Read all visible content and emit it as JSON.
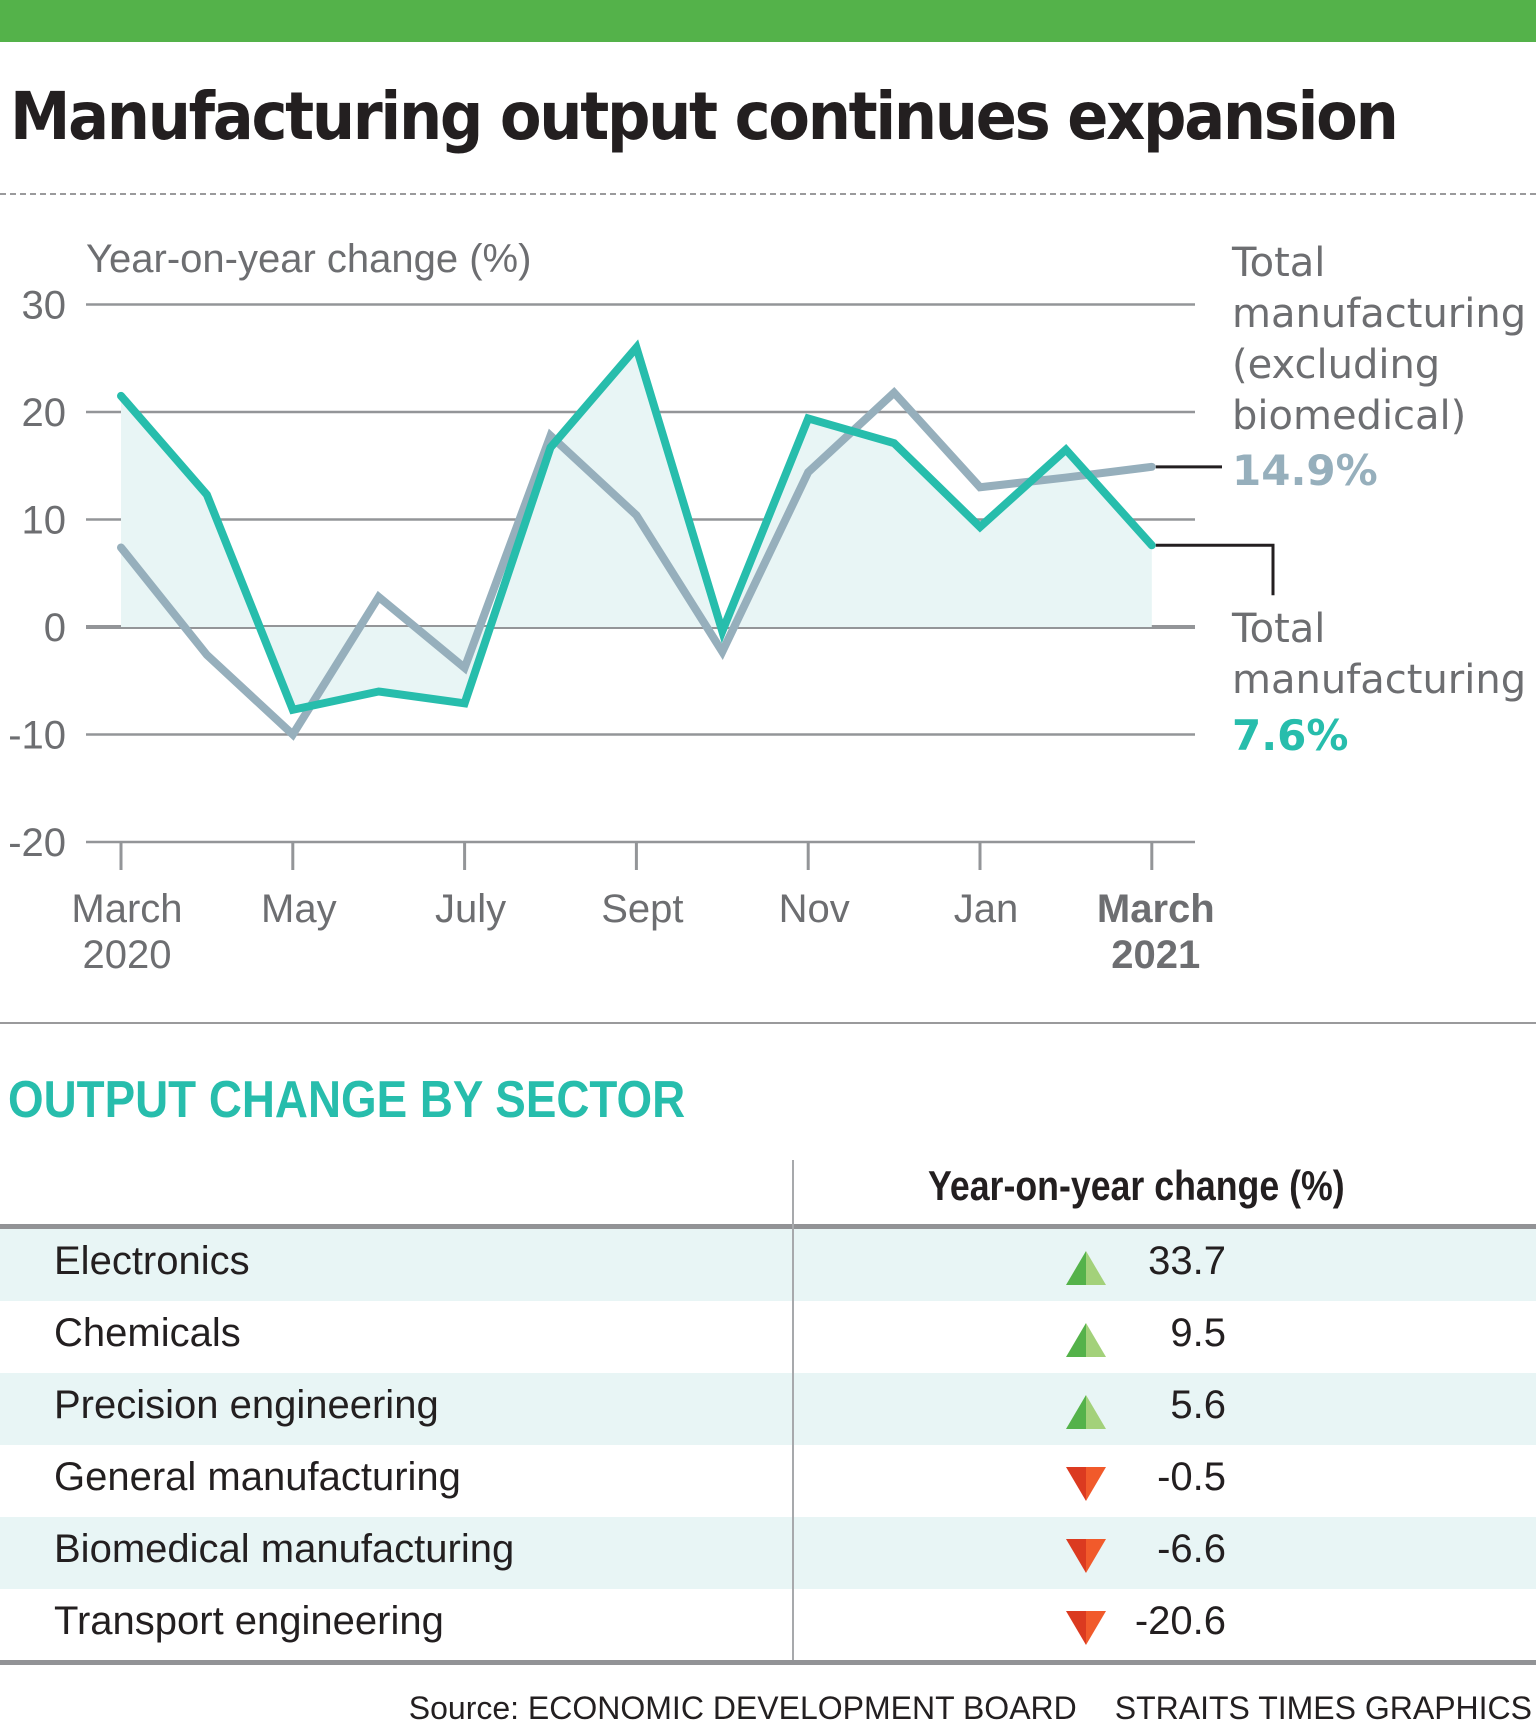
{
  "header": {
    "title": "Manufacturing output continues expansion",
    "accent_color": "#54b24a"
  },
  "chart_data": {
    "type": "line",
    "title": "Manufacturing output continues expansion",
    "ylabel": "Year-on-year change (%)",
    "xlabel": "",
    "ylim": [
      -20,
      30
    ],
    "yticks": [
      30,
      20,
      10,
      0,
      -10,
      -20
    ],
    "grid": true,
    "x": [
      "Mar 2020",
      "Apr 2020",
      "May 2020",
      "Jun 2020",
      "Jul 2020",
      "Aug 2020",
      "Sep 2020",
      "Oct 2020",
      "Nov 2020",
      "Dec 2020",
      "Jan 2021",
      "Feb 2021",
      "Mar 2021"
    ],
    "xtick_labels": [
      {
        "index": 0,
        "lines": [
          "March",
          "2020"
        ],
        "bold": false
      },
      {
        "index": 2,
        "lines": [
          "May"
        ],
        "bold": false
      },
      {
        "index": 4,
        "lines": [
          "July"
        ],
        "bold": false
      },
      {
        "index": 6,
        "lines": [
          "Sept"
        ],
        "bold": false
      },
      {
        "index": 8,
        "lines": [
          "Nov"
        ],
        "bold": false
      },
      {
        "index": 10,
        "lines": [
          "Jan"
        ],
        "bold": false
      },
      {
        "index": 12,
        "lines": [
          "March",
          "2021"
        ],
        "bold": true
      }
    ],
    "series": [
      {
        "name": "Total manufacturing (excluding biomedical)",
        "color": "#96afbc",
        "values": [
          7.4,
          -2.6,
          -10.0,
          2.8,
          -3.8,
          17.8,
          10.4,
          -2.3,
          14.4,
          21.8,
          13.0,
          13.9,
          14.9
        ],
        "label_lines": [
          "Total",
          "manufacturing",
          "(excluding",
          "biomedical)"
        ],
        "end_value_label": "14.9%"
      },
      {
        "name": "Total manufacturing",
        "color": "#27bdac",
        "values": [
          21.5,
          12.3,
          -7.7,
          -6.0,
          -7.1,
          16.7,
          26.0,
          -0.4,
          19.4,
          17.1,
          9.3,
          16.5,
          7.6
        ],
        "label_lines": [
          "Total",
          "manufacturing"
        ],
        "end_value_label": "7.6%",
        "area_fill": "#e8f5f5"
      }
    ]
  },
  "sector_table": {
    "title": "OUTPUT CHANGE BY SECTOR",
    "column_header": "Year-on-year change (%)",
    "rows": [
      {
        "sector": "Electronics",
        "change": "33.7",
        "direction": "up"
      },
      {
        "sector": "Chemicals",
        "change": "9.5",
        "direction": "up"
      },
      {
        "sector": "Precision engineering",
        "change": "5.6",
        "direction": "up"
      },
      {
        "sector": "General manufacturing",
        "change": "-0.5",
        "direction": "down"
      },
      {
        "sector": "Biomedical manufacturing",
        "change": "-6.6",
        "direction": "down"
      },
      {
        "sector": "Transport engineering",
        "change": "-20.6",
        "direction": "down"
      }
    ],
    "colors": {
      "up_dark": "#54b24a",
      "up_light": "#a3d17a",
      "down_dark": "#db3a20",
      "down_light": "#f15a2b"
    }
  },
  "footer": {
    "source": "Source: ECONOMIC DEVELOPMENT BOARD",
    "credit": "STRAITS TIMES GRAPHICS"
  }
}
